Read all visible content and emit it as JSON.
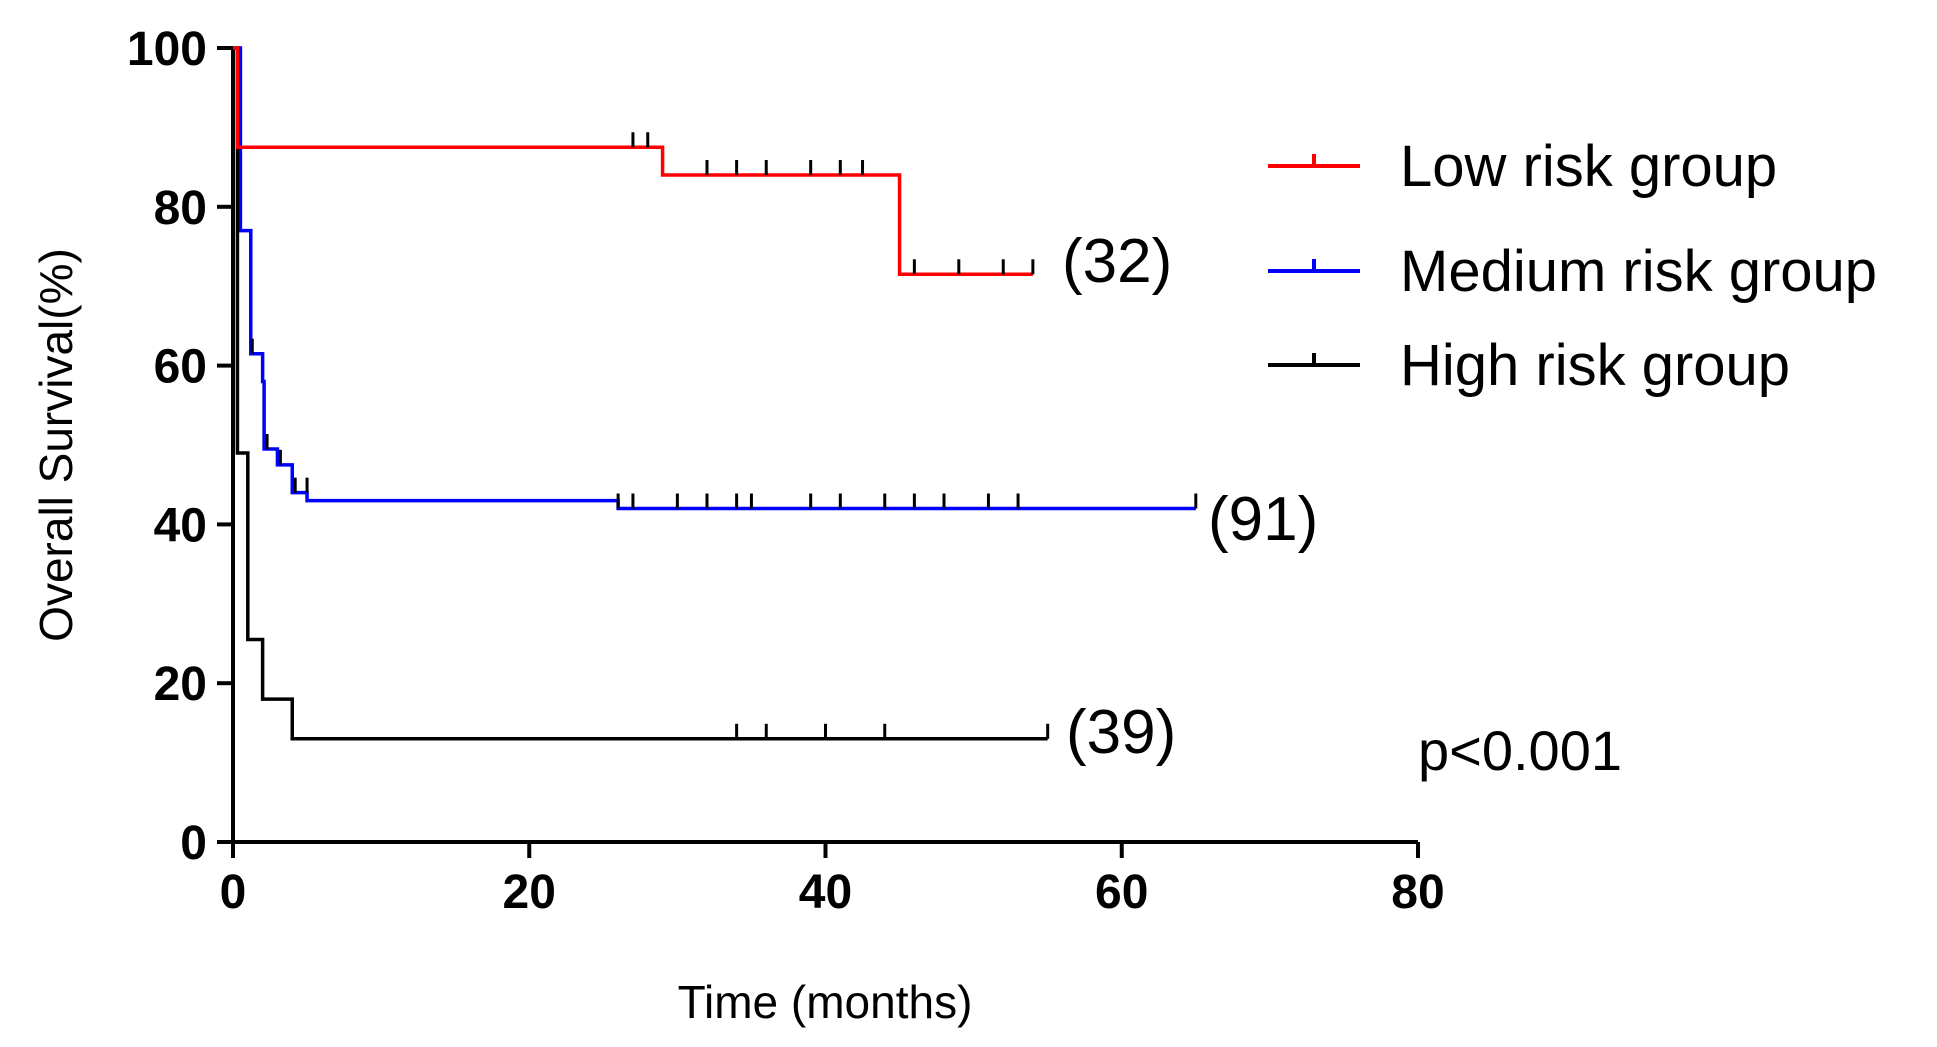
{
  "chart_data": {
    "type": "line",
    "title": "",
    "xlabel": "Time (months)",
    "ylabel": "Overall Survival(%)",
    "xlim": [
      0,
      80
    ],
    "ylim": [
      0,
      100
    ],
    "x_ticks": [
      "0",
      "20",
      "40",
      "60",
      "80"
    ],
    "y_ticks": [
      "0",
      "20",
      "40",
      "60",
      "80",
      "100"
    ],
    "grid": false,
    "legend_position": "top-right",
    "series": [
      {
        "name": "Low risk group",
        "color": "#ff0000",
        "steps": [
          [
            0,
            100
          ],
          [
            0.3,
            87.5
          ],
          [
            29,
            84
          ],
          [
            45,
            71.5
          ],
          [
            54,
            71.5
          ]
        ],
        "censored": [
          [
            27,
            87.5
          ],
          [
            28,
            87.5
          ],
          [
            32,
            84
          ],
          [
            34,
            84
          ],
          [
            36,
            84
          ],
          [
            39,
            84
          ],
          [
            41,
            84
          ],
          [
            42.5,
            84
          ],
          [
            46,
            71.5
          ],
          [
            49,
            71.5
          ],
          [
            52,
            71.5
          ],
          [
            54,
            71.5
          ]
        ],
        "annotation": "(32)"
      },
      {
        "name": "Medium risk group",
        "color": "#0000ff",
        "steps": [
          [
            0,
            100
          ],
          [
            0.5,
            77
          ],
          [
            1.2,
            61.5
          ],
          [
            2,
            58
          ],
          [
            2.1,
            49.5
          ],
          [
            3,
            47.5
          ],
          [
            4,
            44
          ],
          [
            5,
            43
          ],
          [
            26,
            42
          ],
          [
            65,
            42
          ]
        ],
        "censored": [
          [
            26,
            42
          ],
          [
            27,
            42
          ],
          [
            30,
            42
          ],
          [
            32,
            42
          ],
          [
            34,
            42
          ],
          [
            35,
            42
          ],
          [
            39,
            42
          ],
          [
            41,
            42
          ],
          [
            44,
            42
          ],
          [
            46,
            42
          ],
          [
            48,
            42
          ],
          [
            51,
            42
          ],
          [
            53,
            42
          ],
          [
            65,
            42
          ]
        ],
        "annotation": "(91)"
      },
      {
        "name": "High risk group",
        "color": "#000000",
        "steps": [
          [
            0,
            100
          ],
          [
            0.3,
            49
          ],
          [
            1,
            25.5
          ],
          [
            2,
            18
          ],
          [
            4,
            13
          ],
          [
            55,
            13
          ]
        ],
        "censored": [
          [
            34,
            13
          ],
          [
            36,
            13
          ],
          [
            40,
            13
          ],
          [
            44,
            13
          ],
          [
            55,
            13
          ]
        ],
        "censored_extra": [
          [
            1.3,
            61.5
          ],
          [
            2.3,
            49.5
          ],
          [
            3.2,
            47.5
          ],
          [
            4.2,
            44
          ],
          [
            5,
            44
          ]
        ],
        "annotation": "(39)"
      }
    ],
    "p_value_text": "p<0.001"
  }
}
